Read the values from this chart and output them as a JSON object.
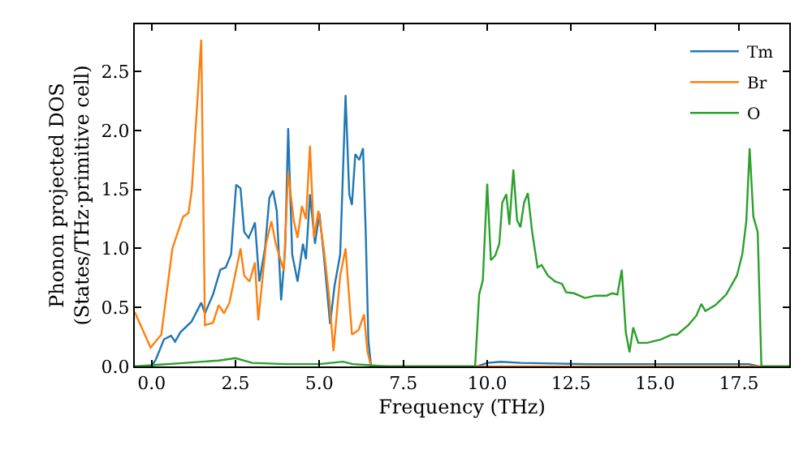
{
  "chart_data": {
    "type": "line",
    "xlabel": "Frequency (THz)",
    "ylabel": "Phonon projected DOS\n(States/THz·primitive cell)",
    "xlim": [
      -0.5,
      19.0
    ],
    "ylim": [
      0,
      2.9
    ],
    "xticks": [
      {
        "value": 0,
        "label": "0.0"
      },
      {
        "value": 2.5,
        "label": "2.5"
      },
      {
        "value": 5,
        "label": "5.0"
      },
      {
        "value": 7.5,
        "label": "7.5"
      },
      {
        "value": 10,
        "label": "10.0"
      },
      {
        "value": 12.5,
        "label": "12.5"
      },
      {
        "value": 15,
        "label": "15.0"
      },
      {
        "value": 17.5,
        "label": "17.5"
      }
    ],
    "yticks": [
      {
        "value": 0,
        "label": "0.0"
      },
      {
        "value": 0.5,
        "label": "0.5"
      },
      {
        "value": 1,
        "label": "1.0"
      },
      {
        "value": 1.5,
        "label": "1.5"
      },
      {
        "value": 2,
        "label": "2.0"
      },
      {
        "value": 2.5,
        "label": "2.5"
      }
    ],
    "legend": "top right",
    "marker": "none",
    "line_style": "solid",
    "series": [
      {
        "name": "Tm",
        "color": "#1f77b4",
        "x": [
          -0.5,
          0,
          0.13,
          0.37,
          0.58,
          0.7,
          0.86,
          1.19,
          1.48,
          1.59,
          1.83,
          2.05,
          2.21,
          2.37,
          2.52,
          2.65,
          2.76,
          2.89,
          2.97,
          3.08,
          3.21,
          3.38,
          3.51,
          3.62,
          3.73,
          3.86,
          3.98,
          4.07,
          4.19,
          4.35,
          4.51,
          4.6,
          4.72,
          4.87,
          5.0,
          5.13,
          5.32,
          5.45,
          5.62,
          5.78,
          5.89,
          5.97,
          6.07,
          6.19,
          6.3,
          6.38,
          6.46,
          6.54,
          9.7,
          10.0,
          10.4,
          11.0,
          13.0,
          14.0,
          15.0,
          17.8,
          18.1,
          19.0
        ],
        "values": [
          0,
          0,
          0.06,
          0.23,
          0.26,
          0.21,
          0.29,
          0.38,
          0.54,
          0.45,
          0.61,
          0.82,
          0.84,
          0.95,
          1.54,
          1.51,
          1.14,
          1.09,
          1.14,
          1.22,
          0.72,
          1.0,
          1.43,
          1.49,
          1.32,
          0.56,
          1.0,
          2.02,
          0.95,
          0.72,
          1.04,
          0.91,
          1.46,
          1.04,
          1.3,
          0.95,
          0.36,
          0.68,
          0.95,
          2.3,
          1.46,
          1.37,
          1.8,
          1.75,
          1.85,
          1.14,
          0.22,
          0,
          0,
          0.03,
          0.04,
          0.03,
          0.02,
          0.02,
          0.02,
          0.02,
          0,
          0
        ]
      },
      {
        "name": "Br",
        "color": "#ff7f0e",
        "x": [
          -0.5,
          -0.03,
          0.29,
          0.62,
          0.94,
          1.1,
          1.2,
          1.48,
          1.59,
          1.83,
          2.0,
          2.16,
          2.32,
          2.65,
          2.76,
          2.92,
          3.08,
          3.18,
          3.41,
          3.57,
          3.7,
          3.94,
          4.07,
          4.24,
          4.35,
          4.48,
          4.6,
          4.72,
          4.84,
          4.97,
          5.13,
          5.29,
          5.42,
          5.62,
          5.78,
          5.97,
          6.17,
          6.33,
          6.43,
          6.54,
          19.0
        ],
        "values": [
          0.46,
          0.16,
          0.27,
          1.0,
          1.27,
          1.3,
          1.5,
          2.77,
          0.35,
          0.37,
          0.52,
          0.45,
          0.54,
          1.0,
          0.77,
          0.72,
          0.88,
          0.39,
          1.04,
          1.23,
          1.04,
          0.81,
          1.64,
          1.23,
          1.09,
          1.36,
          1.25,
          1.87,
          1.09,
          1.32,
          1.0,
          0.59,
          0.13,
          0.77,
          1.0,
          0.27,
          0.31,
          0.44,
          0.13,
          0,
          0
        ]
      },
      {
        "name": "O",
        "color": "#2ca02c",
        "x": [
          -0.5,
          0,
          1,
          2,
          2.5,
          3,
          4,
          5,
          5.7,
          6,
          6.5,
          7,
          9.64,
          9.76,
          9.87,
          10.0,
          10.11,
          10.24,
          10.36,
          10.45,
          10.57,
          10.66,
          10.78,
          10.89,
          10.99,
          11.1,
          11.21,
          11.34,
          11.5,
          11.62,
          11.81,
          12.02,
          12.23,
          12.35,
          12.59,
          12.91,
          13.24,
          13.56,
          13.72,
          13.88,
          14.01,
          14.13,
          14.24,
          14.35,
          14.5,
          14.77,
          15.18,
          15.5,
          15.66,
          15.99,
          16.23,
          16.38,
          16.5,
          16.8,
          17.12,
          17.44,
          17.6,
          17.72,
          17.82,
          17.93,
          18.06,
          18.17,
          19.0
        ],
        "values": [
          0,
          0.01,
          0.03,
          0.05,
          0.07,
          0.03,
          0.02,
          0.02,
          0.04,
          0.02,
          0.01,
          0,
          0,
          0.61,
          0.73,
          1.55,
          0.9,
          0.94,
          1.04,
          1.39,
          1.46,
          1.2,
          1.67,
          1.24,
          1.18,
          1.39,
          1.47,
          1.14,
          0.84,
          0.86,
          0.77,
          0.72,
          0.7,
          0.63,
          0.62,
          0.58,
          0.6,
          0.6,
          0.62,
          0.61,
          0.82,
          0.29,
          0.12,
          0.33,
          0.2,
          0.2,
          0.23,
          0.27,
          0.27,
          0.35,
          0.43,
          0.53,
          0.47,
          0.52,
          0.61,
          0.77,
          0.95,
          1.23,
          1.85,
          1.27,
          1.14,
          0,
          0
        ]
      }
    ]
  }
}
